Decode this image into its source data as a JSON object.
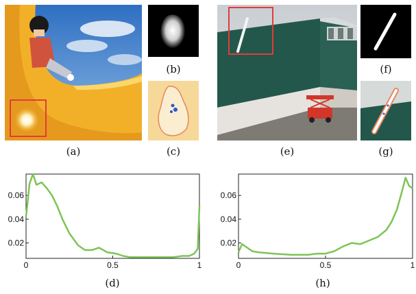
{
  "captions": {
    "a": "(a)",
    "b": "(b)",
    "c": "(c)",
    "d": "(d)",
    "e": "(e)",
    "f": "(f)",
    "g": "(g)",
    "h": "(h)"
  },
  "colors": {
    "curve": "#7cc455",
    "highlight_box": "#e23b3b",
    "slide_yellow": "#f3b52a",
    "wall_green": "#23564a"
  },
  "chart_data": [
    {
      "type": "line",
      "panel": "(d)",
      "xlim": [
        0,
        1
      ],
      "ylim": [
        0.007,
        0.078
      ],
      "xticks": [
        "0",
        "0.5",
        "1"
      ],
      "yticks": [
        "0.02",
        "0.04",
        "0.06"
      ],
      "grid": false,
      "x": [
        0,
        0.02,
        0.04,
        0.06,
        0.09,
        0.12,
        0.15,
        0.18,
        0.21,
        0.25,
        0.3,
        0.34,
        0.38,
        0.42,
        0.47,
        0.52,
        0.56,
        0.6,
        0.65,
        0.7,
        0.75,
        0.8,
        0.85,
        0.9,
        0.94,
        0.97,
        0.99,
        1.0
      ],
      "y": [
        0.042,
        0.07,
        0.078,
        0.069,
        0.071,
        0.066,
        0.06,
        0.051,
        0.04,
        0.028,
        0.018,
        0.014,
        0.014,
        0.016,
        0.012,
        0.011,
        0.009,
        0.008,
        0.008,
        0.008,
        0.008,
        0.008,
        0.008,
        0.009,
        0.009,
        0.011,
        0.015,
        0.051
      ]
    },
    {
      "type": "line",
      "panel": "(h)",
      "xlim": [
        0,
        1
      ],
      "ylim": [
        0.007,
        0.078
      ],
      "xticks": [
        "0",
        "0.5",
        "1"
      ],
      "yticks": [
        "0.02",
        "0.04",
        "0.06"
      ],
      "grid": false,
      "x": [
        0,
        0.02,
        0.05,
        0.08,
        0.12,
        0.2,
        0.3,
        0.4,
        0.45,
        0.5,
        0.55,
        0.6,
        0.65,
        0.7,
        0.75,
        0.8,
        0.85,
        0.88,
        0.91,
        0.94,
        0.96,
        0.98,
        1.0
      ],
      "y": [
        0.012,
        0.019,
        0.016,
        0.013,
        0.012,
        0.011,
        0.01,
        0.01,
        0.011,
        0.011,
        0.013,
        0.017,
        0.02,
        0.019,
        0.022,
        0.025,
        0.031,
        0.038,
        0.048,
        0.064,
        0.075,
        0.068,
        0.066
      ]
    }
  ]
}
